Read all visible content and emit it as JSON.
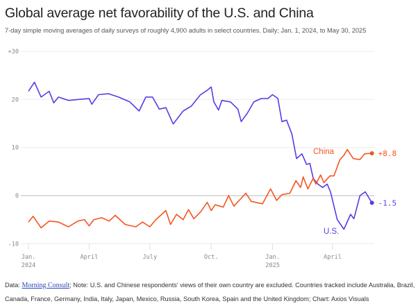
{
  "header": {
    "title": "Global average net favorability of the U.S. and China",
    "subtitle": "7-day simple moving averages of daily surveys of roughly 4,900 adults in select countries. Daily; Jan. 1, 2024, to May 30, 2025"
  },
  "footer": {
    "data_prefix": "Data: ",
    "source_link": "Morning Consult",
    "note": "; Note: U.S. and Chinese respondents' views of their own country are excluded. Countries tracked include Australia, Brazil, Canada, France, Germany, India, Italy, Japan, Mexico, Russia, South Korea, Spain and the United Kingdom; Chart: Axios Visuals"
  },
  "chart_data": {
    "type": "line",
    "title": "Global average net favorability of the U.S. and China",
    "xlabel": "",
    "ylabel": "",
    "ylim": [
      -10,
      30
    ],
    "xlim": [
      "2024-01-01",
      "2025-05-30"
    ],
    "grid": true,
    "y_ticks": [
      {
        "value": 30,
        "label": "+30"
      },
      {
        "value": 20,
        "label": "20"
      },
      {
        "value": 10,
        "label": "10"
      },
      {
        "value": 0,
        "label": "0"
      },
      {
        "value": -10,
        "label": "-10"
      }
    ],
    "x_ticks": [
      {
        "date": "2024-01-01",
        "label": "Jan.",
        "sublabel": "2024"
      },
      {
        "date": "2024-04-01",
        "label": "April",
        "sublabel": ""
      },
      {
        "date": "2024-07-01",
        "label": "July",
        "sublabel": ""
      },
      {
        "date": "2024-10-01",
        "label": "Oct.",
        "sublabel": ""
      },
      {
        "date": "2025-01-01",
        "label": "Jan.",
        "sublabel": "2025"
      },
      {
        "date": "2025-04-01",
        "label": "April",
        "sublabel": ""
      }
    ],
    "series": [
      {
        "name": "U.S.",
        "color": "#5a3ae6",
        "end_label": "-1.5",
        "points": [
          [
            "2024-01-01",
            21.7
          ],
          [
            "2024-01-10",
            23.6
          ],
          [
            "2024-01-20",
            20.5
          ],
          [
            "2024-02-01",
            21.7
          ],
          [
            "2024-02-08",
            19.3
          ],
          [
            "2024-02-15",
            20.5
          ],
          [
            "2024-03-01",
            19.8
          ],
          [
            "2024-03-15",
            20.0
          ],
          [
            "2024-04-01",
            20.2
          ],
          [
            "2024-04-05",
            19.0
          ],
          [
            "2024-04-15",
            21.0
          ],
          [
            "2024-04-30",
            21.2
          ],
          [
            "2024-05-15",
            20.5
          ],
          [
            "2024-06-01",
            19.5
          ],
          [
            "2024-06-15",
            17.6
          ],
          [
            "2024-06-25",
            20.5
          ],
          [
            "2024-07-05",
            20.5
          ],
          [
            "2024-07-15",
            18.0
          ],
          [
            "2024-07-25",
            18.3
          ],
          [
            "2024-08-05",
            14.9
          ],
          [
            "2024-08-20",
            17.6
          ],
          [
            "2024-09-01",
            18.6
          ],
          [
            "2024-09-15",
            21.0
          ],
          [
            "2024-09-25",
            21.9
          ],
          [
            "2024-10-01",
            22.6
          ],
          [
            "2024-10-05",
            19.5
          ],
          [
            "2024-10-12",
            17.8
          ],
          [
            "2024-10-17",
            19.8
          ],
          [
            "2024-10-30",
            19.5
          ],
          [
            "2024-11-10",
            18.0
          ],
          [
            "2024-11-15",
            15.4
          ],
          [
            "2024-11-24",
            17.1
          ],
          [
            "2024-12-04",
            19.5
          ],
          [
            "2024-12-15",
            20.2
          ],
          [
            "2024-12-25",
            20.2
          ],
          [
            "2025-01-01",
            21.0
          ],
          [
            "2025-01-09",
            20.2
          ],
          [
            "2025-01-15",
            15.4
          ],
          [
            "2025-01-22",
            15.7
          ],
          [
            "2025-01-30",
            12.8
          ],
          [
            "2025-02-06",
            7.7
          ],
          [
            "2025-02-14",
            8.7
          ],
          [
            "2025-02-21",
            6.5
          ],
          [
            "2025-02-26",
            6.7
          ],
          [
            "2025-03-03",
            3.6
          ],
          [
            "2025-03-10",
            2.4
          ],
          [
            "2025-03-17",
            1.7
          ],
          [
            "2025-03-24",
            2.4
          ],
          [
            "2025-03-29",
            0.7
          ],
          [
            "2025-04-08",
            -5.0
          ],
          [
            "2025-04-18",
            -7.0
          ],
          [
            "2025-04-28",
            -3.9
          ],
          [
            "2025-05-03",
            -4.8
          ],
          [
            "2025-05-12",
            0.0
          ],
          [
            "2025-05-20",
            0.8
          ],
          [
            "2025-05-30",
            -1.5
          ]
        ]
      },
      {
        "name": "China",
        "color": "#f5541f",
        "end_label": "+8.8",
        "points": [
          [
            "2024-01-01",
            -5.5
          ],
          [
            "2024-01-08",
            -4.3
          ],
          [
            "2024-01-20",
            -6.7
          ],
          [
            "2024-02-01",
            -5.3
          ],
          [
            "2024-02-15",
            -5.5
          ],
          [
            "2024-03-01",
            -6.5
          ],
          [
            "2024-03-15",
            -5.3
          ],
          [
            "2024-03-25",
            -5.0
          ],
          [
            "2024-04-01",
            -6.3
          ],
          [
            "2024-04-08",
            -5.0
          ],
          [
            "2024-04-20",
            -4.6
          ],
          [
            "2024-05-01",
            -5.3
          ],
          [
            "2024-05-10",
            -4.1
          ],
          [
            "2024-05-25",
            -6.0
          ],
          [
            "2024-06-10",
            -6.5
          ],
          [
            "2024-06-20",
            -5.5
          ],
          [
            "2024-07-01",
            -6.5
          ],
          [
            "2024-07-10",
            -5.0
          ],
          [
            "2024-07-25",
            -3.1
          ],
          [
            "2024-08-01",
            -6.0
          ],
          [
            "2024-08-10",
            -3.9
          ],
          [
            "2024-08-20",
            -5.0
          ],
          [
            "2024-08-28",
            -2.9
          ],
          [
            "2024-09-05",
            -4.8
          ],
          [
            "2024-09-15",
            -3.4
          ],
          [
            "2024-09-25",
            -1.4
          ],
          [
            "2024-10-01",
            -3.1
          ],
          [
            "2024-10-07",
            -1.9
          ],
          [
            "2024-10-19",
            -2.4
          ],
          [
            "2024-10-27",
            0.0
          ],
          [
            "2024-11-04",
            -2.2
          ],
          [
            "2024-11-22",
            0.5
          ],
          [
            "2024-11-30",
            -1.2
          ],
          [
            "2024-12-17",
            -1.7
          ],
          [
            "2024-12-29",
            1.4
          ],
          [
            "2025-01-07",
            -1.0
          ],
          [
            "2025-01-15",
            0.2
          ],
          [
            "2025-01-27",
            0.5
          ],
          [
            "2025-02-05",
            3.1
          ],
          [
            "2025-02-12",
            1.7
          ],
          [
            "2025-02-16",
            3.9
          ],
          [
            "2025-02-23",
            1.4
          ],
          [
            "2025-03-03",
            3.6
          ],
          [
            "2025-03-07",
            2.4
          ],
          [
            "2025-03-14",
            4.3
          ],
          [
            "2025-03-19",
            2.7
          ],
          [
            "2025-03-28",
            4.1
          ],
          [
            "2025-04-03",
            4.1
          ],
          [
            "2025-04-12",
            7.5
          ],
          [
            "2025-04-18",
            8.4
          ],
          [
            "2025-04-23",
            9.6
          ],
          [
            "2025-05-02",
            7.7
          ],
          [
            "2025-05-12",
            7.5
          ],
          [
            "2025-05-19",
            8.7
          ],
          [
            "2025-05-30",
            8.8
          ]
        ]
      }
    ]
  }
}
